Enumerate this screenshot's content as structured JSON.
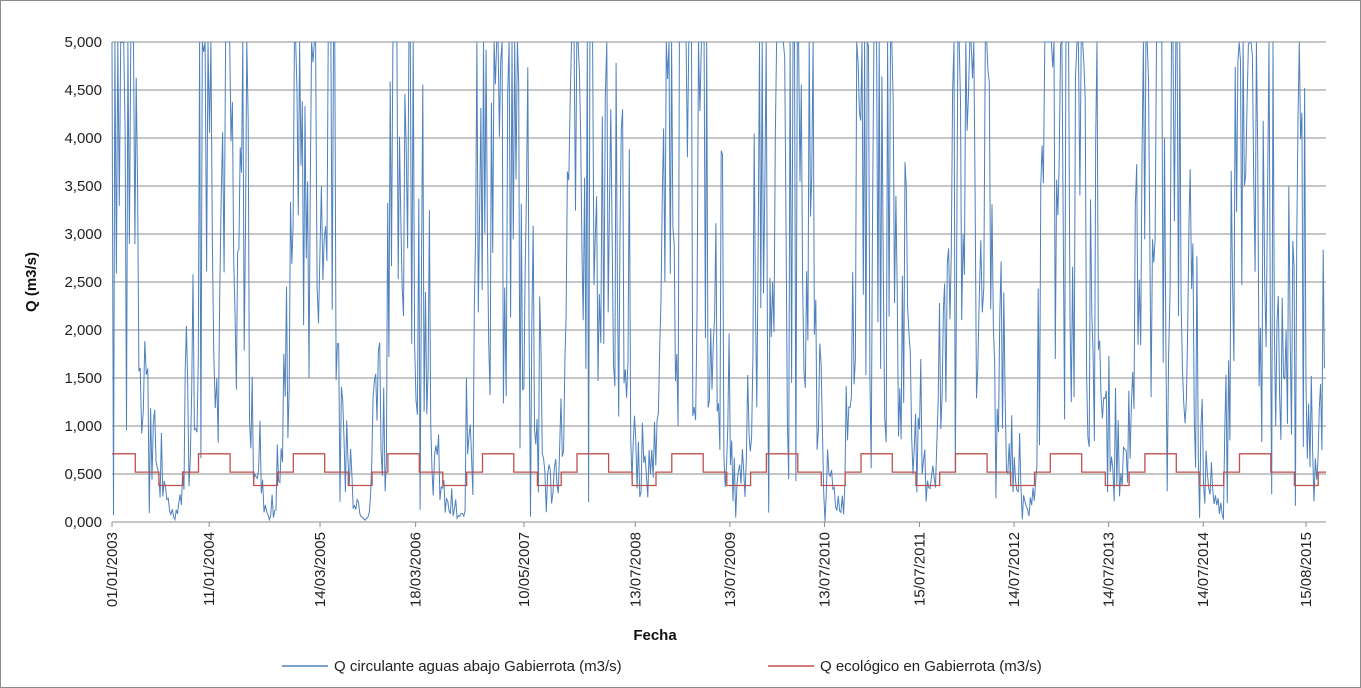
{
  "chart_data": {
    "type": "line",
    "title": "",
    "xlabel": "Fecha",
    "ylabel": "Q (m3/s)",
    "ylim": [
      0,
      5
    ],
    "xlim": [
      "2003-01-01",
      "2015-10-31"
    ],
    "grid": "horizontal",
    "legend_position": "bottom",
    "y_tick_labels": [
      "0,000",
      "0,500",
      "1,000",
      "1,500",
      "2,000",
      "2,500",
      "3,000",
      "3,500",
      "4,000",
      "4,500",
      "5,000"
    ],
    "x_tick_labels": [
      "01/01/2003",
      "11/01/2004",
      "14/03/2005",
      "18/03/2006",
      "10/05/2007",
      "13/07/2008",
      "13/07/2009",
      "13/07/2010",
      "15/07/2011",
      "14/07/2012",
      "14/07/2013",
      "14/07/2014",
      "15/08/2015"
    ],
    "x_tick_dates": [
      "2003-01-01",
      "2004-01-11",
      "2005-03-14",
      "2006-03-18",
      "2007-05-10",
      "2008-07-13",
      "2009-07-13",
      "2010-07-13",
      "2011-07-15",
      "2012-07-14",
      "2013-07-14",
      "2014-07-14",
      "2015-08-15"
    ],
    "series": [
      {
        "name": "Q circulante aguas abajo Gabierrota (m3/s)",
        "color": "#4f81bd",
        "values_note_type": "daily",
        "points": [
          [
            "2003-01-01",
            5.0
          ],
          [
            "2003-02-15",
            2.8
          ],
          [
            "2003-03-20",
            5.0
          ],
          [
            "2003-04-20",
            1.6
          ],
          [
            "2003-05-25",
            0.9
          ],
          [
            "2003-06-25",
            0.5
          ],
          [
            "2003-08-01",
            0.15
          ],
          [
            "2003-09-01",
            0.05
          ],
          [
            "2003-10-01",
            0.3
          ],
          [
            "2003-10-20",
            1.8
          ],
          [
            "2003-11-15",
            0.6
          ],
          [
            "2003-12-10",
            3.0
          ],
          [
            "2004-01-01",
            5.0
          ],
          [
            "2004-02-15",
            1.5
          ],
          [
            "2004-03-20",
            5.0
          ],
          [
            "2004-04-25",
            1.0
          ],
          [
            "2004-05-20",
            3.5
          ],
          [
            "2004-06-20",
            0.9
          ],
          [
            "2004-07-20",
            0.4
          ],
          [
            "2004-08-20",
            0.1
          ],
          [
            "2004-09-15",
            0.02
          ],
          [
            "2004-10-15",
            0.5
          ],
          [
            "2004-11-15",
            2.0
          ],
          [
            "2004-12-15",
            5.0
          ],
          [
            "2005-01-20",
            2.2
          ],
          [
            "2005-02-25",
            5.0
          ],
          [
            "2005-03-25",
            1.4
          ],
          [
            "2005-04-25",
            5.0
          ],
          [
            "2005-05-25",
            1.0
          ],
          [
            "2005-06-25",
            0.5
          ],
          [
            "2005-07-25",
            0.25
          ],
          [
            "2005-08-25",
            0.08
          ],
          [
            "2005-09-20",
            0.02
          ],
          [
            "2005-10-20",
            1.6
          ],
          [
            "2005-11-20",
            0.3
          ],
          [
            "2005-12-15",
            5.0
          ],
          [
            "2006-01-20",
            1.8
          ],
          [
            "2006-02-20",
            5.0
          ],
          [
            "2006-03-25",
            0.8
          ],
          [
            "2006-04-25",
            2.6
          ],
          [
            "2006-05-25",
            0.5
          ],
          [
            "2006-06-25",
            0.3
          ],
          [
            "2006-07-25",
            0.1
          ],
          [
            "2006-08-25",
            0.04
          ],
          [
            "2006-09-20",
            0.01
          ],
          [
            "2006-10-20",
            1.2
          ],
          [
            "2006-11-20",
            5.0
          ],
          [
            "2006-12-20",
            1.7
          ],
          [
            "2007-01-25",
            5.0
          ],
          [
            "2007-02-25",
            1.3
          ],
          [
            "2007-03-25",
            5.0
          ],
          [
            "2007-04-25",
            1.1
          ],
          [
            "2007-05-25",
            3.0
          ],
          [
            "2007-06-25",
            0.8
          ],
          [
            "2007-07-25",
            0.5
          ],
          [
            "2007-08-25",
            0.3
          ],
          [
            "2007-09-25",
            0.6
          ],
          [
            "2007-10-25",
            1.5
          ],
          [
            "2007-11-25",
            5.0
          ],
          [
            "2007-12-25",
            1.8
          ],
          [
            "2008-01-25",
            5.0
          ],
          [
            "2008-02-25",
            1.5
          ],
          [
            "2008-03-25",
            5.0
          ],
          [
            "2008-04-25",
            1.2
          ],
          [
            "2008-05-25",
            2.5
          ],
          [
            "2008-06-25",
            0.8
          ],
          [
            "2008-07-25",
            0.5
          ],
          [
            "2008-08-25",
            0.35
          ],
          [
            "2008-09-25",
            0.6
          ],
          [
            "2008-10-25",
            2.0
          ],
          [
            "2008-11-25",
            5.0
          ],
          [
            "2008-12-25",
            1.9
          ],
          [
            "2009-01-25",
            5.0
          ],
          [
            "2009-02-25",
            1.4
          ],
          [
            "2009-03-25",
            5.0
          ],
          [
            "2009-04-25",
            1.0
          ],
          [
            "2009-05-25",
            1.9
          ],
          [
            "2009-06-25",
            0.7
          ],
          [
            "2009-07-25",
            0.4
          ],
          [
            "2009-08-25",
            0.25
          ],
          [
            "2009-09-25",
            0.5
          ],
          [
            "2009-10-25",
            1.6
          ],
          [
            "2009-11-25",
            5.0
          ],
          [
            "2009-12-25",
            2.0
          ],
          [
            "2010-01-25",
            5.0
          ],
          [
            "2010-02-25",
            1.5
          ],
          [
            "2010-03-25",
            5.0
          ],
          [
            "2010-04-25",
            1.0
          ],
          [
            "2010-05-25",
            2.2
          ],
          [
            "2010-06-25",
            0.7
          ],
          [
            "2010-07-25",
            0.4
          ],
          [
            "2010-08-25",
            0.2
          ],
          [
            "2010-09-25",
            0.15
          ],
          [
            "2010-10-25",
            1.8
          ],
          [
            "2010-11-25",
            5.0
          ],
          [
            "2010-12-25",
            2.1
          ],
          [
            "2011-01-25",
            5.0
          ],
          [
            "2011-02-25",
            1.4
          ],
          [
            "2011-03-25",
            5.0
          ],
          [
            "2011-04-25",
            0.9
          ],
          [
            "2011-05-25",
            2.5
          ],
          [
            "2011-06-25",
            0.7
          ],
          [
            "2011-07-25",
            0.45
          ],
          [
            "2011-08-25",
            0.4
          ],
          [
            "2011-09-25",
            0.6
          ],
          [
            "2011-10-25",
            1.7
          ],
          [
            "2011-11-25",
            5.0
          ],
          [
            "2011-12-25",
            1.8
          ],
          [
            "2012-01-25",
            5.0
          ],
          [
            "2012-02-25",
            1.3
          ],
          [
            "2012-03-25",
            4.2
          ],
          [
            "2012-04-25",
            1.1
          ],
          [
            "2012-05-25",
            1.5
          ],
          [
            "2012-06-25",
            0.6
          ],
          [
            "2012-07-25",
            0.3
          ],
          [
            "2012-08-25",
            0.15
          ],
          [
            "2012-09-25",
            0.1
          ],
          [
            "2012-10-25",
            1.9
          ],
          [
            "2012-11-25",
            5.0
          ],
          [
            "2012-12-25",
            2.0
          ],
          [
            "2013-01-25",
            5.0
          ],
          [
            "2013-02-25",
            1.6
          ],
          [
            "2013-03-25",
            5.0
          ],
          [
            "2013-04-25",
            1.2
          ],
          [
            "2013-05-25",
            2.4
          ],
          [
            "2013-06-25",
            0.8
          ],
          [
            "2013-07-25",
            0.45
          ],
          [
            "2013-08-25",
            0.3
          ],
          [
            "2013-09-25",
            0.6
          ],
          [
            "2013-10-25",
            1.8
          ],
          [
            "2013-11-25",
            5.0
          ],
          [
            "2013-12-25",
            1.9
          ],
          [
            "2014-01-25",
            5.0
          ],
          [
            "2014-02-25",
            1.5
          ],
          [
            "2014-03-25",
            5.0
          ],
          [
            "2014-04-25",
            1.0
          ],
          [
            "2014-05-25",
            2.0
          ],
          [
            "2014-06-25",
            0.7
          ],
          [
            "2014-07-25",
            0.4
          ],
          [
            "2014-08-25",
            0.2
          ],
          [
            "2014-09-25",
            0.1
          ],
          [
            "2014-10-25",
            1.7
          ],
          [
            "2014-11-25",
            5.0
          ],
          [
            "2014-12-25",
            2.2
          ],
          [
            "2015-01-25",
            5.0
          ],
          [
            "2015-02-25",
            1.6
          ],
          [
            "2015-03-25",
            5.0
          ],
          [
            "2015-04-25",
            1.1
          ],
          [
            "2015-05-25",
            2.2
          ],
          [
            "2015-06-25",
            0.8
          ],
          [
            "2015-07-25",
            4.6
          ],
          [
            "2015-08-25",
            0.6
          ],
          [
            "2015-09-25",
            0.3
          ],
          [
            "2015-10-25",
            1.6
          ]
        ]
      },
      {
        "name": "Q ecológico en Gabierrota (m3/s)",
        "color": "#c0504d",
        "pattern_months": {
          "1": 0.71,
          "2": 0.71,
          "3": 0.71,
          "4": 0.52,
          "5": 0.52,
          "6": 0.52,
          "7": 0.38,
          "8": 0.38,
          "9": 0.38,
          "10": 0.52,
          "11": 0.52,
          "12": 0.71
        },
        "start": "2003-01-01",
        "end": "2015-10-31"
      }
    ]
  }
}
